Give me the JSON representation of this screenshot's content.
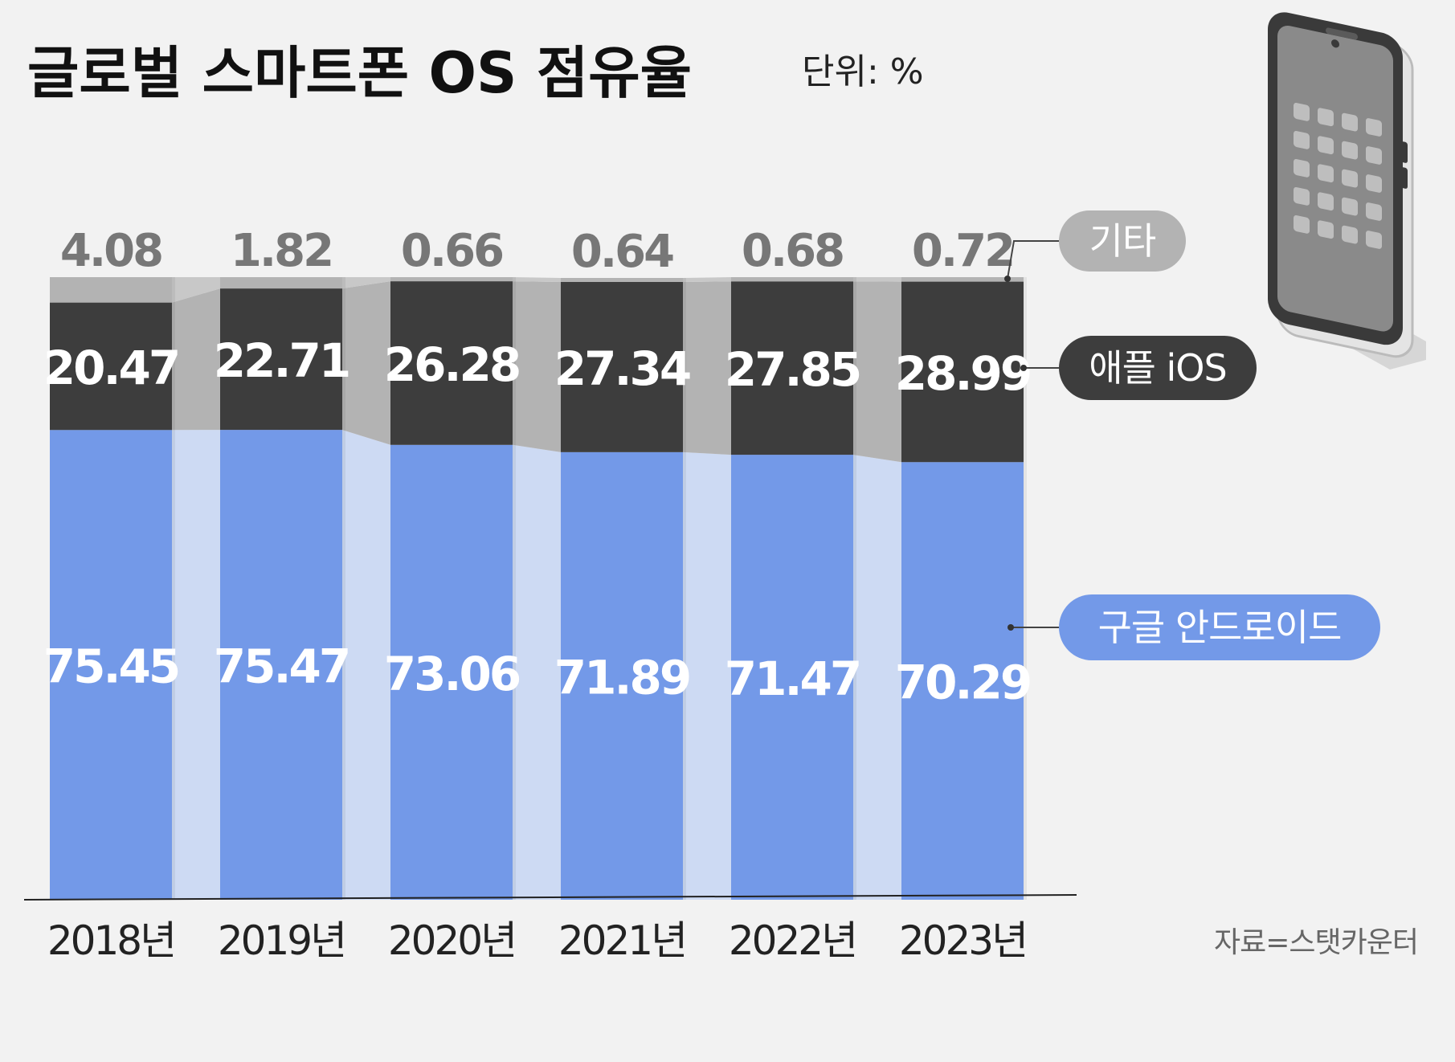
{
  "title": "글로벌 스마트폰 OS 점유율",
  "unit": "단위: %",
  "source": "자료=스탯카운터",
  "colors": {
    "background": "#f2f2f2",
    "android": "#7399e8",
    "android_band": "#cddaf3",
    "ios": "#3d3d3d",
    "ios_band": "#b3b3b3",
    "other": "#b3b3b3",
    "other_band": "#c8c8c8",
    "other_value_text": "#777777",
    "bar_value_text": "#ffffff",
    "axis": "#222222",
    "year_text": "#222222",
    "source_text": "#666666",
    "legend_other_bg": "#b3b3b3",
    "legend_ios_bg": "#3d3d3d",
    "legend_android_bg": "#7399e8"
  },
  "chart_data": {
    "type": "bar",
    "stacked": true,
    "categories": [
      "2018년",
      "2019년",
      "2020년",
      "2021년",
      "2022년",
      "2023년"
    ],
    "series": [
      {
        "name": "구글 안드로이드",
        "values": [
          75.45,
          75.47,
          73.06,
          71.89,
          71.47,
          70.29
        ]
      },
      {
        "name": "애플 iOS",
        "values": [
          20.47,
          22.71,
          26.28,
          27.34,
          27.85,
          28.99
        ]
      },
      {
        "name": "기타",
        "values": [
          4.08,
          1.82,
          0.66,
          0.64,
          0.68,
          0.72
        ]
      }
    ],
    "value_labels": {
      "android": [
        "75.45",
        "75.47",
        "73.06",
        "71.89",
        "71.47",
        "70.29"
      ],
      "ios": [
        "20.47",
        "22.71",
        "26.28",
        "27.34",
        "27.85",
        "28.99"
      ],
      "other": [
        "4.08",
        "1.82",
        "0.66",
        "0.64",
        "0.68",
        "0.72"
      ]
    },
    "ylim": [
      0,
      100
    ],
    "grid": false,
    "legend": "right"
  },
  "illustration": {
    "icon": "smartphone-icon"
  }
}
